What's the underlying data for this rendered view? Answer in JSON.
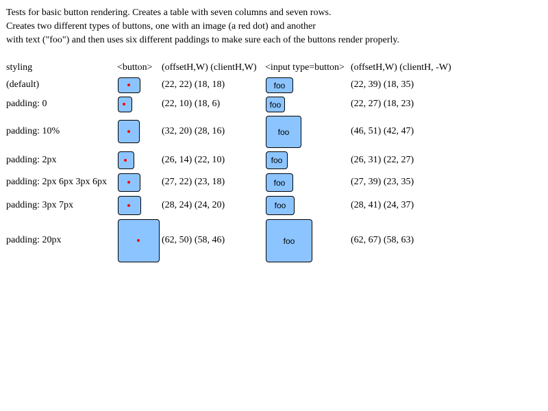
{
  "description": {
    "lines": [
      "Tests for basic button rendering. Creates a table with seven columns and seven rows.",
      "Creates two different types of buttons, one with an image (a red dot) and another",
      "with text (\"foo\") and then uses six different paddings to make sure each of the buttons render properly."
    ]
  },
  "table": {
    "headers": {
      "styling": "styling",
      "button": "<button>",
      "button_metrics": "(offsetH,W) (clientH,W)",
      "input": "<input type=button>",
      "input_metrics": "(offsetH,W) (clientH, -W)"
    },
    "button_text": "foo",
    "accent_color": "#8cc4ff",
    "dot_color": "#ff0000",
    "rows": [
      {
        "styling": "(default)",
        "button_metrics": "(22, 22) (18, 18)",
        "input_metrics": "(22, 39) (18, 35)"
      },
      {
        "styling": "padding: 0",
        "button_metrics": "(22, 10) (18, 6)",
        "input_metrics": "(22, 27) (18, 23)"
      },
      {
        "styling": "padding: 10%",
        "button_metrics": "(32, 20) (28, 16)",
        "input_metrics": "(46, 51) (42, 47)"
      },
      {
        "styling": "padding: 2px",
        "button_metrics": "(26, 14) (22, 10)",
        "input_metrics": "(26, 31) (22, 27)"
      },
      {
        "styling": "padding: 2px 6px 3px 6px",
        "button_metrics": "(27, 22) (23, 18)",
        "input_metrics": "(27, 39) (23, 35)"
      },
      {
        "styling": "padding: 3px 7px",
        "button_metrics": "(28, 24) (24, 20)",
        "input_metrics": "(28, 41) (24, 37)"
      },
      {
        "styling": "padding: 20px",
        "button_metrics": "(62, 50) (58, 46)",
        "input_metrics": "(62, 67) (58, 63)"
      }
    ]
  }
}
